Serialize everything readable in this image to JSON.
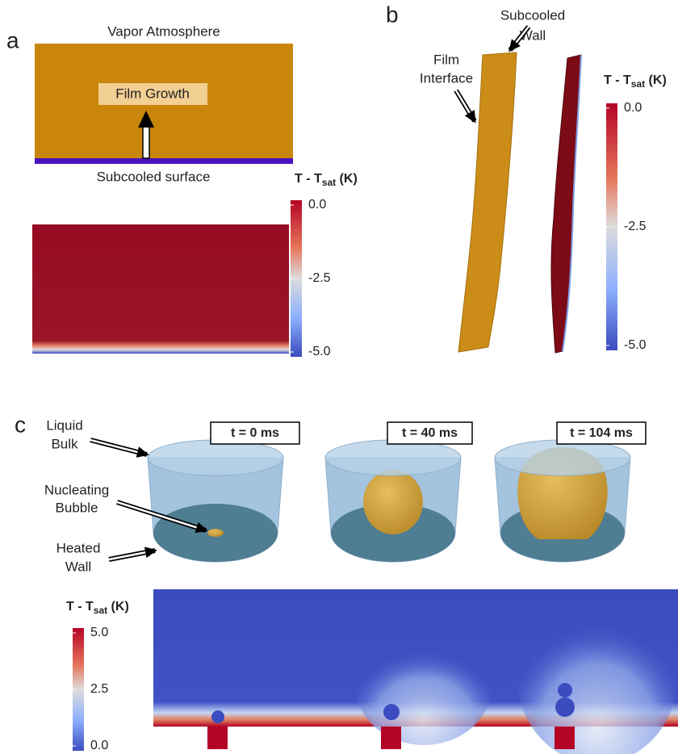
{
  "panel_a": {
    "label": "a",
    "top_label": "Vapor Atmosphere",
    "box_label": "Film Growth",
    "bottom_label": "Subcooled surface",
    "colorbar": {
      "title": {
        "main": "T - T",
        "sub": "sat",
        "unit": "(K)"
      },
      "ticks": [
        "0.0",
        "-2.5",
        "-5.0"
      ]
    }
  },
  "panel_b": {
    "label": "b",
    "wall_label": [
      "Subcooled",
      "Wall"
    ],
    "interface_label": [
      "Film",
      "Interface"
    ],
    "colorbar": {
      "title": {
        "main": "T - T",
        "sub": "sat",
        "unit": "(K)"
      },
      "ticks": [
        "0.0",
        "-2.5",
        "-5.0"
      ]
    }
  },
  "panel_c": {
    "label": "c",
    "times": [
      "t = 0 ms",
      "t = 40 ms",
      "t = 104 ms"
    ],
    "labels": {
      "bulk": [
        "Liquid",
        "Bulk"
      ],
      "bubble": [
        "Nucleating",
        "Bubble"
      ],
      "wall": [
        "Heated",
        "Wall"
      ]
    },
    "colorbar": {
      "title": {
        "main": "T - T",
        "sub": "sat",
        "unit": "(K)"
      },
      "ticks": [
        "5.0",
        "2.5",
        "0.0"
      ]
    }
  }
}
